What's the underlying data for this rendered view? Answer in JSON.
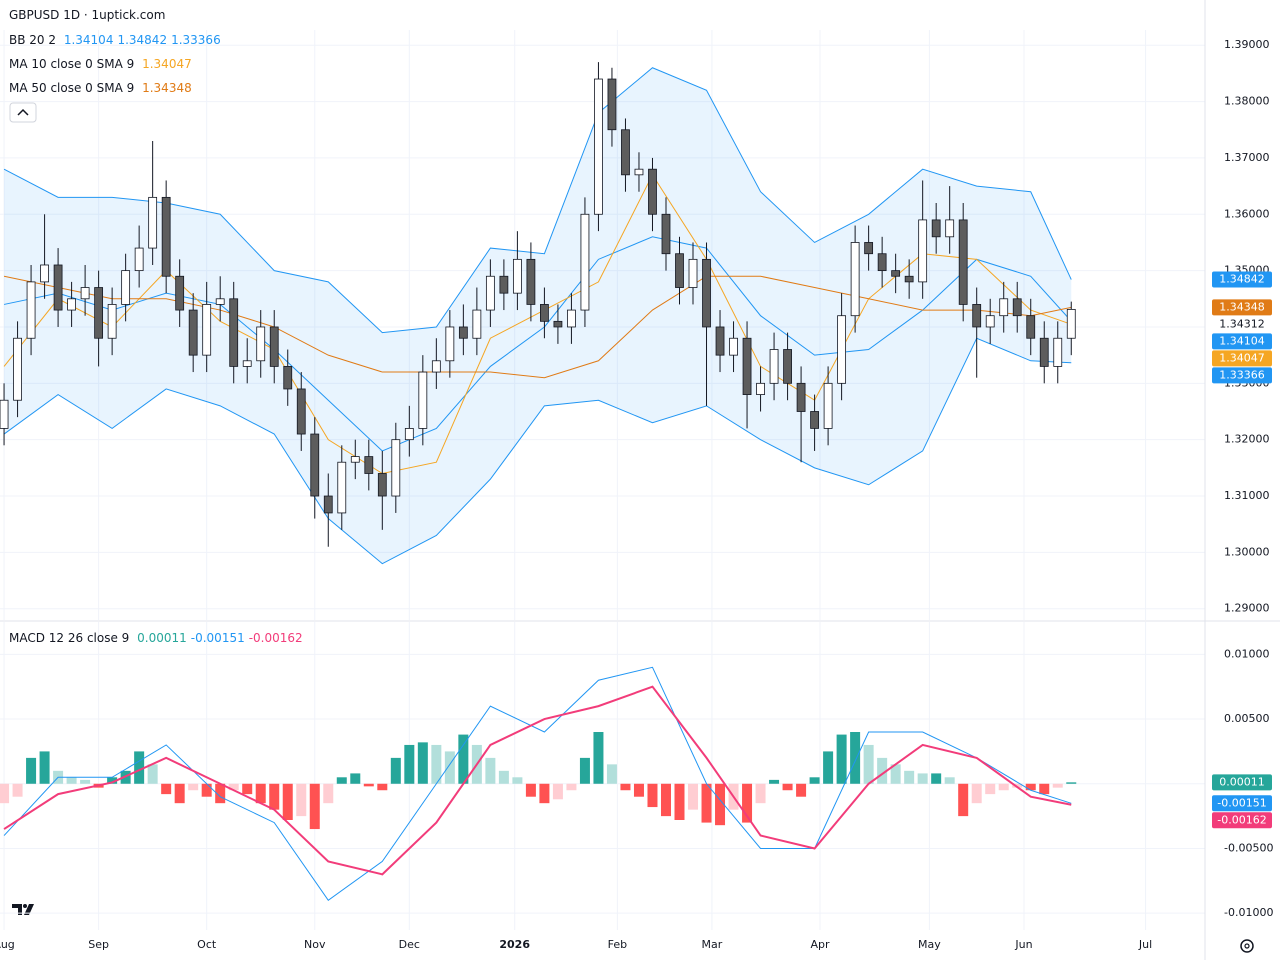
{
  "chart_data": [
    {
      "type": "candlestick",
      "title": "GBPUSD 1D · 1uptick.com",
      "open": [
        1.322,
        1.327,
        1.338,
        1.348,
        1.351,
        1.343,
        1.345,
        1.347,
        1.338,
        1.344,
        1.35,
        1.354,
        1.363,
        1.349,
        1.343,
        1.335,
        1.344,
        1.345,
        1.333,
        1.334,
        1.34,
        1.333,
        1.329,
        1.321,
        1.31,
        1.307,
        1.316,
        1.317,
        1.314,
        1.31,
        1.32,
        1.322,
        1.332,
        1.334,
        1.34,
        1.338,
        1.343,
        1.349,
        1.346,
        1.352,
        1.344,
        1.341,
        1.34,
        1.343,
        1.36,
        1.384,
        1.375,
        1.367,
        1.368,
        1.36,
        1.353,
        1.347,
        1.352,
        1.34,
        1.335,
        1.338,
        1.328,
        1.33,
        1.336,
        1.33,
        1.325,
        1.322,
        1.33,
        1.342,
        1.355,
        1.353,
        1.35,
        1.349,
        1.348,
        1.359,
        1.356,
        1.359,
        1.344,
        1.34,
        1.342,
        1.345,
        1.342,
        1.338,
        1.333,
        1.338
      ],
      "high": [
        1.33,
        1.341,
        1.351,
        1.36,
        1.354,
        1.348,
        1.351,
        1.35,
        1.347,
        1.353,
        1.358,
        1.373,
        1.366,
        1.352,
        1.346,
        1.348,
        1.349,
        1.348,
        1.338,
        1.343,
        1.343,
        1.336,
        1.332,
        1.324,
        1.314,
        1.319,
        1.32,
        1.32,
        1.318,
        1.323,
        1.326,
        1.335,
        1.338,
        1.343,
        1.344,
        1.347,
        1.352,
        1.352,
        1.357,
        1.355,
        1.347,
        1.344,
        1.346,
        1.363,
        1.387,
        1.386,
        1.377,
        1.371,
        1.37,
        1.363,
        1.356,
        1.355,
        1.355,
        1.343,
        1.341,
        1.341,
        1.333,
        1.339,
        1.339,
        1.333,
        1.328,
        1.333,
        1.346,
        1.358,
        1.358,
        1.356,
        1.353,
        1.352,
        1.366,
        1.362,
        1.365,
        1.362,
        1.347,
        1.345,
        1.348,
        1.348,
        1.345,
        1.341,
        1.341,
        1.3445
      ],
      "low": [
        1.319,
        1.324,
        1.335,
        1.345,
        1.34,
        1.34,
        1.342,
        1.333,
        1.335,
        1.341,
        1.347,
        1.351,
        1.346,
        1.34,
        1.332,
        1.332,
        1.341,
        1.33,
        1.33,
        1.331,
        1.33,
        1.326,
        1.318,
        1.306,
        1.301,
        1.304,
        1.313,
        1.311,
        1.304,
        1.307,
        1.317,
        1.319,
        1.329,
        1.331,
        1.335,
        1.335,
        1.34,
        1.343,
        1.343,
        1.341,
        1.338,
        1.337,
        1.337,
        1.34,
        1.357,
        1.372,
        1.364,
        1.364,
        1.357,
        1.35,
        1.344,
        1.344,
        1.326,
        1.332,
        1.332,
        1.322,
        1.325,
        1.327,
        1.327,
        1.316,
        1.318,
        1.319,
        1.327,
        1.339,
        1.35,
        1.347,
        1.346,
        1.345,
        1.345,
        1.353,
        1.353,
        1.341,
        1.331,
        1.337,
        1.339,
        1.339,
        1.335,
        1.33,
        1.33,
        1.335
      ],
      "close": [
        1.327,
        1.338,
        1.348,
        1.351,
        1.343,
        1.345,
        1.347,
        1.338,
        1.344,
        1.35,
        1.354,
        1.363,
        1.349,
        1.343,
        1.335,
        1.344,
        1.345,
        1.333,
        1.334,
        1.34,
        1.333,
        1.329,
        1.321,
        1.31,
        1.307,
        1.316,
        1.317,
        1.314,
        1.31,
        1.32,
        1.322,
        1.332,
        1.334,
        1.34,
        1.338,
        1.343,
        1.349,
        1.346,
        1.352,
        1.344,
        1.341,
        1.34,
        1.343,
        1.36,
        1.384,
        1.375,
        1.367,
        1.368,
        1.36,
        1.353,
        1.347,
        1.352,
        1.34,
        1.335,
        1.338,
        1.328,
        1.33,
        1.336,
        1.33,
        1.325,
        1.322,
        1.33,
        1.342,
        1.355,
        1.353,
        1.35,
        1.349,
        1.348,
        1.359,
        1.356,
        1.359,
        1.344,
        1.34,
        1.342,
        1.345,
        1.342,
        1.338,
        1.333,
        1.338,
        1.34312
      ],
      "up_color": "#ffffff",
      "down_color": "#5d5d5d",
      "border_color": "#131722",
      "xlim": [
        -0.3,
        88.9
      ],
      "xticks": [
        {
          "value": 0,
          "label": "Aug"
        },
        {
          "value": 7,
          "label": "Sep"
        },
        {
          "value": 15,
          "label": "Oct"
        },
        {
          "value": 23,
          "label": "Nov"
        },
        {
          "value": 30,
          "label": "Dec"
        },
        {
          "value": 37.8,
          "label": "2026"
        },
        {
          "value": 45.4,
          "label": "Feb"
        },
        {
          "value": 52.4,
          "label": "Mar"
        },
        {
          "value": 60.4,
          "label": "Apr"
        },
        {
          "value": 68.5,
          "label": "May"
        },
        {
          "value": 75.5,
          "label": "Jun"
        },
        {
          "value": 84.5,
          "label": "Jul"
        }
      ],
      "ylim": [
        1.288,
        1.3927
      ],
      "yticks": [
        {
          "value": 1.29,
          "label": "1.29000"
        },
        {
          "value": 1.3,
          "label": "1.30000"
        },
        {
          "value": 1.31,
          "label": "1.31000"
        },
        {
          "value": 1.32,
          "label": "1.32000"
        },
        {
          "value": 1.33,
          "label": "1.33000"
        },
        {
          "value": 1.34,
          "label": "1.34000"
        },
        {
          "value": 1.35,
          "label": "1.35000"
        },
        {
          "value": 1.36,
          "label": "1.36000"
        },
        {
          "value": 1.37,
          "label": "1.37000"
        },
        {
          "value": 1.38,
          "label": "1.38000"
        },
        {
          "value": 1.39,
          "label": "1.39000"
        }
      ],
      "grid": true,
      "indicators": [
        {
          "label": "BB 20 2",
          "x": [
            0,
            4,
            8,
            12,
            16,
            20,
            24,
            28,
            32,
            36,
            40,
            44,
            48,
            52,
            56,
            60,
            64,
            68,
            72,
            76,
            79
          ],
          "fill": "rgba(33,150,243,0.1)",
          "lines": [
            {
              "color": "#2196f3",
              "values": [
                1.344,
                1.346,
                1.343,
                1.346,
                1.344,
                1.336,
                1.327,
                1.318,
                1.322,
                1.333,
                1.34,
                1.352,
                1.356,
                1.354,
                1.342,
                1.335,
                1.336,
                1.343,
                1.352,
                1.349,
                1.34104
              ]
            },
            {
              "color": "#2196f3",
              "values": [
                1.368,
                1.363,
                1.363,
                1.362,
                1.36,
                1.35,
                1.348,
                1.339,
                1.34,
                1.354,
                1.353,
                1.378,
                1.386,
                1.382,
                1.364,
                1.355,
                1.36,
                1.368,
                1.365,
                1.364,
                1.34842
              ]
            },
            {
              "color": "#2196f3",
              "values": [
                1.321,
                1.328,
                1.322,
                1.329,
                1.326,
                1.321,
                1.306,
                1.298,
                1.303,
                1.313,
                1.326,
                1.327,
                1.323,
                1.326,
                1.32,
                1.315,
                1.312,
                1.318,
                1.338,
                1.334,
                1.33366
              ]
            }
          ]
        },
        {
          "label": "MA 10 close 0 SMA 9",
          "x": [
            0,
            4,
            8,
            12,
            16,
            20,
            24,
            28,
            32,
            36,
            40,
            44,
            48,
            52,
            56,
            60,
            64,
            68,
            72,
            76,
            79
          ],
          "lines": [
            {
              "color": "#f5a623",
              "values": [
                1.333,
                1.345,
                1.34,
                1.35,
                1.341,
                1.336,
                1.32,
                1.314,
                1.316,
                1.338,
                1.343,
                1.348,
                1.367,
                1.352,
                1.333,
                1.327,
                1.345,
                1.353,
                1.352,
                1.343,
                1.34047
              ]
            }
          ]
        },
        {
          "label": "MA 50 close 0 SMA 9",
          "x": [
            0,
            4,
            8,
            12,
            16,
            20,
            24,
            28,
            32,
            36,
            40,
            44,
            48,
            52,
            56,
            60,
            64,
            68,
            72,
            76,
            79
          ],
          "lines": [
            {
              "color": "#e07b16",
              "values": [
                1.349,
                1.347,
                1.345,
                1.345,
                1.343,
                1.34,
                1.335,
                1.332,
                1.332,
                1.332,
                1.331,
                1.334,
                1.343,
                1.349,
                1.349,
                1.347,
                1.345,
                1.343,
                1.343,
                1.342,
                1.34348
              ]
            }
          ]
        }
      ]
    },
    {
      "type": "macd",
      "title": "MACD 12 26 close 9",
      "values": [
        -0.0015,
        -0.001,
        0.002,
        0.0025,
        0.001,
        0.0005,
        0.0003,
        -0.0003,
        0.0005,
        0.001,
        0.0025,
        0.0015,
        -0.0008,
        -0.0015,
        -0.0005,
        -0.001,
        -0.0015,
        -0.0005,
        -0.0008,
        -0.0015,
        -0.002,
        -0.0028,
        -0.0025,
        -0.0035,
        -0.0015,
        0.0005,
        0.0008,
        -0.0002,
        -0.0005,
        0.002,
        0.003,
        0.0032,
        0.003,
        0.0025,
        0.0038,
        0.003,
        0.002,
        0.001,
        0.0005,
        -0.001,
        -0.0015,
        -0.0012,
        -0.0005,
        0.002,
        0.004,
        0.0015,
        -0.0005,
        -0.001,
        -0.0018,
        -0.0025,
        -0.0028,
        -0.002,
        -0.003,
        -0.0032,
        -0.002,
        -0.003,
        -0.0015,
        0.0003,
        -0.0005,
        -0.001,
        0.0005,
        0.0025,
        0.0038,
        0.004,
        0.003,
        0.002,
        0.0015,
        0.001,
        0.0008,
        0.0008,
        0.0005,
        -0.0025,
        -0.0015,
        -0.0008,
        -0.0005,
        -0.0003,
        -0.0005,
        -0.0008,
        -0.0003,
        0.00011
      ],
      "colors": {
        "above_rising": "#26a69a",
        "above_falling": "#b2dfdb",
        "below_falling": "#ff5252",
        "below_rising": "#ffcdd2"
      },
      "lines": [
        {
          "color": "#2196f3",
          "x": [
            0,
            4,
            8,
            12,
            16,
            20,
            24,
            28,
            32,
            36,
            40,
            44,
            48,
            52,
            56,
            60,
            64,
            68,
            72,
            76,
            79
          ],
          "values": [
            -0.004,
            0.0005,
            0.0005,
            0.003,
            -0.001,
            -0.003,
            -0.009,
            -0.006,
            0.0,
            0.006,
            0.004,
            0.008,
            0.009,
            0.0,
            -0.005,
            -0.005,
            0.004,
            0.004,
            0.002,
            -0.0005,
            -0.00151
          ]
        },
        {
          "color": "#f23c7a",
          "x": [
            0,
            4,
            8,
            12,
            16,
            20,
            24,
            28,
            32,
            36,
            40,
            44,
            48,
            52,
            56,
            60,
            64,
            68,
            72,
            76,
            79
          ],
          "values": [
            -0.0035,
            -0.0008,
            0.0001,
            0.002,
            0.0,
            -0.002,
            -0.006,
            -0.007,
            -0.003,
            0.003,
            0.005,
            0.006,
            0.0075,
            0.002,
            -0.004,
            -0.005,
            0.0,
            0.003,
            0.002,
            -0.001,
            -0.00162
          ]
        }
      ],
      "xlim": [
        -0.3,
        88.9
      ],
      "ylim": [
        -0.0113,
        0.0125
      ],
      "yticks": [
        {
          "value": -0.01,
          "label": "-0.01000"
        },
        {
          "value": -0.005,
          "label": "-0.00500"
        },
        {
          "value": 0,
          "label": "0.00000"
        },
        {
          "value": 0.005,
          "label": "0.00500"
        },
        {
          "value": 0.01,
          "label": "0.01000"
        }
      ],
      "grid": true
    }
  ]
}
